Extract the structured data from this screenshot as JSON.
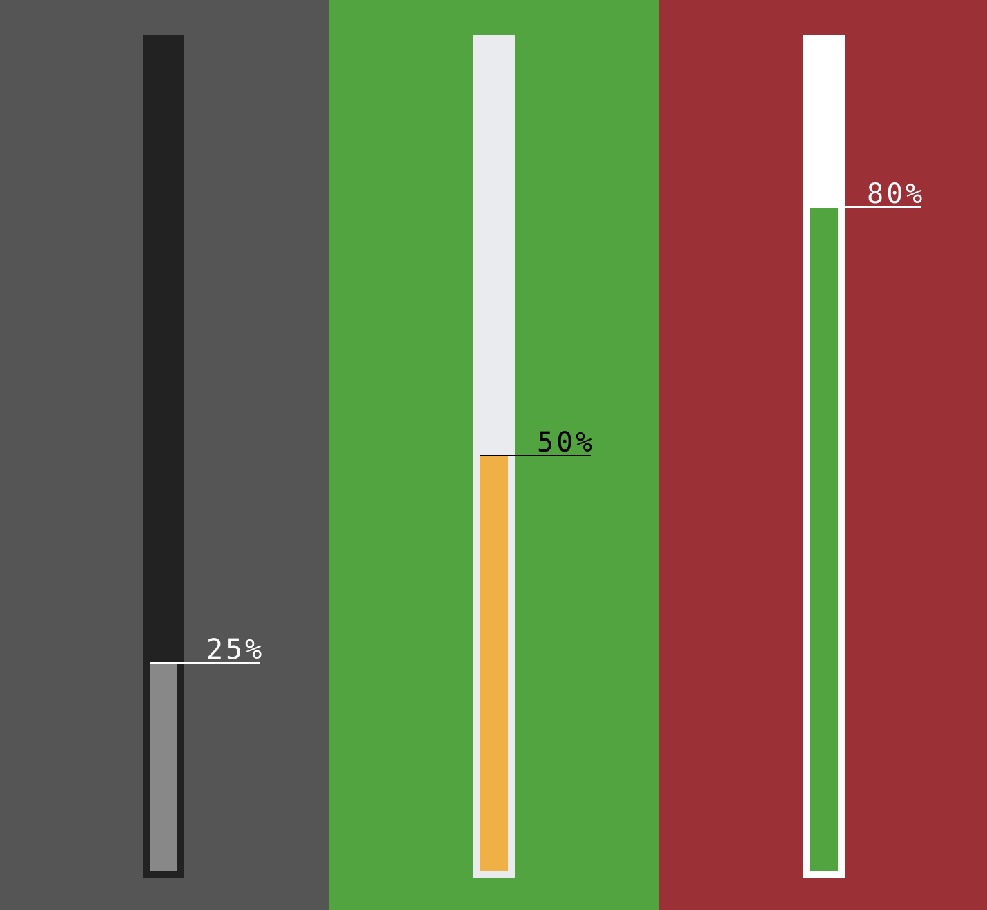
{
  "gauges": [
    {
      "label": "25%",
      "value": 0.25,
      "colors": {
        "background": "#555555",
        "track": "#222222",
        "fill": "#888888",
        "text": "#ffffff"
      }
    },
    {
      "label": "50%",
      "value": 0.5,
      "colors": {
        "background": "#51a440",
        "track": "#e9ebee",
        "fill": "#efb045",
        "text": "#000000"
      }
    },
    {
      "label": "80%",
      "value": 0.8,
      "colors": {
        "background": "#9b3037",
        "track": "#ffffff",
        "fill": "#51a440",
        "text": "#ffffff"
      }
    }
  ]
}
